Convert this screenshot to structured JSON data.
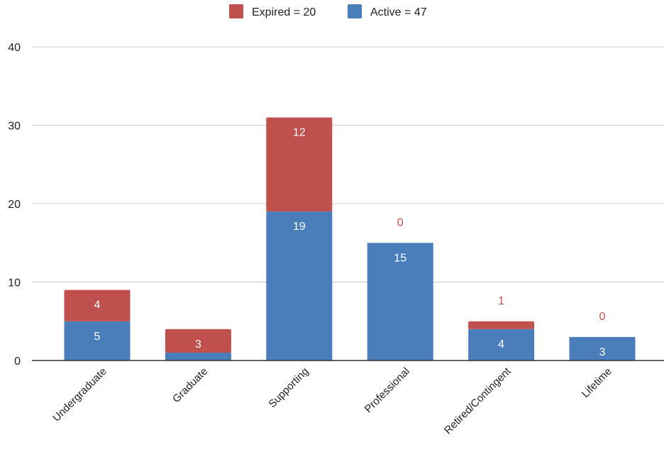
{
  "chart_data": {
    "type": "bar",
    "stacked": true,
    "categories": [
      "Undergraduate",
      "Graduate",
      "Supporting",
      "Professional",
      "Retired/Contingent",
      "Lifetime"
    ],
    "series": [
      {
        "name": "Active = 47",
        "color": "#4a7ebb",
        "values": [
          5,
          1,
          19,
          15,
          4,
          3
        ]
      },
      {
        "name": "Expired = 20",
        "color": "#c0504d",
        "values": [
          4,
          3,
          12,
          0,
          1,
          0
        ]
      }
    ],
    "legend_order": [
      "Expired = 20",
      "Active = 47"
    ],
    "legend_position": "top",
    "ylim": [
      0,
      40
    ],
    "yticks": [
      0,
      10,
      20,
      30,
      40
    ],
    "grid": true,
    "title": "",
    "xlabel": "",
    "ylabel": ""
  }
}
